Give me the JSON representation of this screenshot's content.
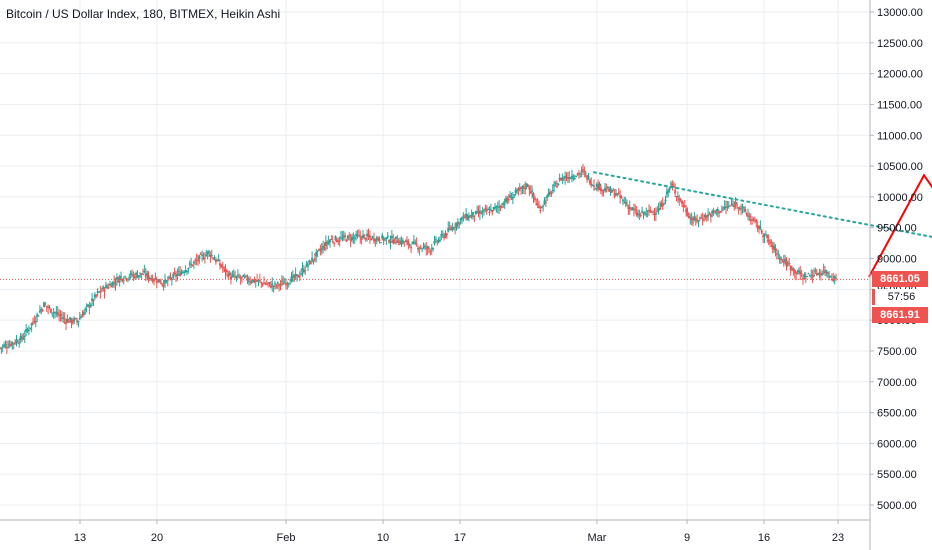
{
  "header": {
    "title": "Bitcoin / US Dollar Index, 180, BITMEX, Heikin Ashi"
  },
  "price_tags": {
    "last_price": "8661.05",
    "countdown": "57:56",
    "bid_price": "8661.91"
  },
  "colors": {
    "up": "#26a69a",
    "down": "#ef5350",
    "grid": "#e8eef2",
    "trendline": "#26a69a",
    "projection": "#ff0000",
    "price_line": "#ef5350",
    "text": "#131722"
  },
  "chart_data": {
    "type": "candlestick",
    "style": "Heikin Ashi",
    "interval": "180",
    "exchange": "BITMEX",
    "symbol": "Bitcoin / US Dollar Index",
    "x_tick_labels": [
      "13",
      "20",
      "Feb",
      "10",
      "17",
      "Mar",
      "9",
      "16",
      "23"
    ],
    "y_axis": {
      "ylim": [
        4750,
        13200
      ],
      "ticks": [
        "5000.00",
        "5500.00",
        "6000.00",
        "6500.00",
        "7000.00",
        "7500.00",
        "8000.00",
        "8500.00",
        "9000.00",
        "9500.00",
        "10000.00",
        "10500.00",
        "11000.00",
        "11500.00",
        "12000.00",
        "12500.00",
        "13000.00"
      ],
      "position": "right"
    },
    "grid": true,
    "last_price": 8661.05,
    "price_path": [
      [
        0,
        7550
      ],
      [
        2,
        7700
      ],
      [
        4,
        8250
      ],
      [
        6,
        8000
      ],
      [
        7,
        7980
      ],
      [
        9,
        8450
      ],
      [
        11,
        8700
      ],
      [
        13,
        8750
      ],
      [
        15,
        8600
      ],
      [
        17,
        8850
      ],
      [
        19,
        9100
      ],
      [
        21,
        8700
      ],
      [
        23,
        8650
      ],
      [
        25,
        8550
      ],
      [
        27,
        8700
      ],
      [
        30,
        9300
      ],
      [
        33,
        9350
      ],
      [
        36,
        9300
      ],
      [
        39,
        9150
      ],
      [
        42,
        9650
      ],
      [
        45,
        9800
      ],
      [
        48,
        10200
      ],
      [
        49,
        9800
      ],
      [
        51,
        10300
      ],
      [
        53,
        10400
      ],
      [
        54,
        10200
      ],
      [
        56,
        10050
      ],
      [
        58,
        9700
      ],
      [
        60,
        9800
      ],
      [
        61,
        10200
      ],
      [
        63,
        9600
      ],
      [
        65,
        9750
      ],
      [
        67,
        9900
      ],
      [
        69,
        9500
      ],
      [
        71,
        9000
      ],
      [
        73,
        8700
      ],
      [
        75,
        8800
      ],
      [
        76,
        8661
      ]
    ],
    "trendline": {
      "style": "dotted",
      "from": [
        54,
        10400
      ],
      "to": [
        90,
        9170
      ]
    },
    "projection_arrow": {
      "color": "red",
      "points": [
        [
          79,
          8700
        ],
        [
          84,
          10350
        ],
        [
          88,
          9330
        ],
        [
          94,
          11600
        ]
      ]
    }
  }
}
